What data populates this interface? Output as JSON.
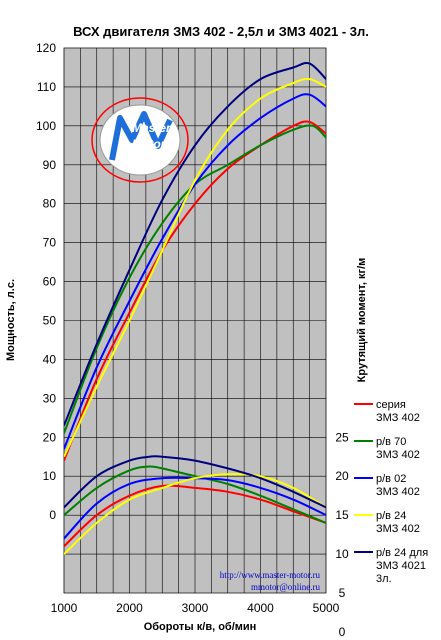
{
  "chart_data": {
    "type": "line",
    "title": "ВСХ двигателя ЗМЗ 402 - 2,5л и ЗМЗ 4021 - 3л.",
    "xlabel": "Обороты к/в, об/мин",
    "ylabel_left": "Мощность, л.с.",
    "ylabel_right": "Крутящий момент, кг/м",
    "xlim": [
      1000,
      5000
    ],
    "x_ticks": [
      1000,
      2000,
      3000,
      4000,
      5000
    ],
    "ylim_left": [
      -20,
      120
    ],
    "y_ticks_left": [
      0,
      10,
      20,
      30,
      40,
      50,
      60,
      70,
      80,
      90,
      100,
      110,
      120
    ],
    "right_axis_map": {
      "right_0_at_left": -30,
      "units_per_right_unit": 2
    },
    "y_ticks_right": [
      0,
      5,
      10,
      15,
      20,
      25
    ],
    "grid": true,
    "series": [
      {
        "name": "серия ЗМЗ 402",
        "color": "#ff0000",
        "power": {
          "x": [
            1000,
            1500,
            2000,
            2500,
            3000,
            3500,
            4000,
            4500,
            4750,
            5000
          ],
          "y": [
            14,
            35,
            52,
            68,
            80,
            89,
            95,
            100,
            101,
            98
          ]
        },
        "torque": {
          "x": [
            1000,
            1500,
            2000,
            2500,
            3000,
            3500,
            4000,
            4500,
            5000
          ],
          "y": [
            -8,
            0,
            5,
            7.5,
            7,
            6,
            4,
            1,
            -2
          ]
        }
      },
      {
        "name": "р/в 70 ЗМЗ 402",
        "color": "#008000",
        "power": {
          "x": [
            1000,
            1500,
            2000,
            2500,
            3000,
            3500,
            4000,
            4500,
            4800,
            5000
          ],
          "y": [
            21,
            43,
            61,
            75,
            85,
            90,
            95,
            99,
            100,
            97
          ]
        },
        "torque": {
          "x": [
            1000,
            1500,
            2000,
            2300,
            2500,
            3000,
            3500,
            4000,
            4500,
            5000
          ],
          "y": [
            0,
            7,
            11.5,
            12.5,
            12,
            10,
            8,
            5,
            1.5,
            -2
          ]
        }
      },
      {
        "name": "р/в 02 ЗМЗ 402",
        "color": "#0000ff",
        "power": {
          "x": [
            1000,
            1500,
            2000,
            2500,
            3000,
            3500,
            4000,
            4500,
            4750,
            5000
          ],
          "y": [
            17,
            38,
            55,
            71,
            85,
            95,
            102,
            107,
            108,
            105
          ]
        },
        "torque": {
          "x": [
            1000,
            1500,
            2000,
            2500,
            3000,
            3500,
            4000,
            4500,
            5000
          ],
          "y": [
            -6,
            3,
            8,
            9.5,
            9.5,
            9,
            7,
            4,
            0
          ]
        }
      },
      {
        "name": "р/в 24 ЗМЗ 402",
        "color": "#ffff00",
        "power": {
          "x": [
            1000,
            1500,
            2000,
            2500,
            3000,
            3500,
            4000,
            4500,
            4750,
            5000
          ],
          "y": [
            15,
            33,
            50,
            68,
            86,
            99,
            107,
            111,
            112,
            110
          ]
        },
        "torque": {
          "x": [
            1000,
            1500,
            2000,
            2500,
            3000,
            3500,
            4000,
            4500,
            5000
          ],
          "y": [
            -10,
            -2,
            4,
            7,
            9.5,
            10.5,
            10,
            7,
            2
          ]
        }
      },
      {
        "name": "р/в 24 для ЗМЗ 4021 3л.",
        "color": "#000080",
        "power": {
          "x": [
            1000,
            1500,
            2000,
            2500,
            3000,
            3500,
            4000,
            4500,
            4750,
            5000
          ],
          "y": [
            23,
            44,
            63,
            81,
            95,
            105,
            112,
            115,
            116,
            112
          ]
        },
        "torque": {
          "x": [
            1000,
            1500,
            2000,
            2300,
            2500,
            3000,
            3500,
            4000,
            4500,
            5000
          ],
          "y": [
            2,
            10,
            14,
            15,
            15,
            14,
            12,
            9.5,
            6,
            2
          ]
        }
      }
    ],
    "annotations": [
      "http://www.master-motor.ru",
      "mmotor@online.ru"
    ]
  },
  "logo": {
    "text_top": "Master",
    "text_bottom": "Motor"
  },
  "legend": [
    {
      "lines": [
        "серия",
        "ЗМЗ 402"
      ]
    },
    {
      "lines": [
        "р/в 70",
        "ЗМЗ 402"
      ]
    },
    {
      "lines": [
        "р/в 02",
        "ЗМЗ 402"
      ]
    },
    {
      "lines": [
        "р/в 24",
        "ЗМЗ 402"
      ]
    },
    {
      "lines": [
        "р/в 24 для",
        "ЗМЗ 4021",
        "3л."
      ]
    }
  ]
}
